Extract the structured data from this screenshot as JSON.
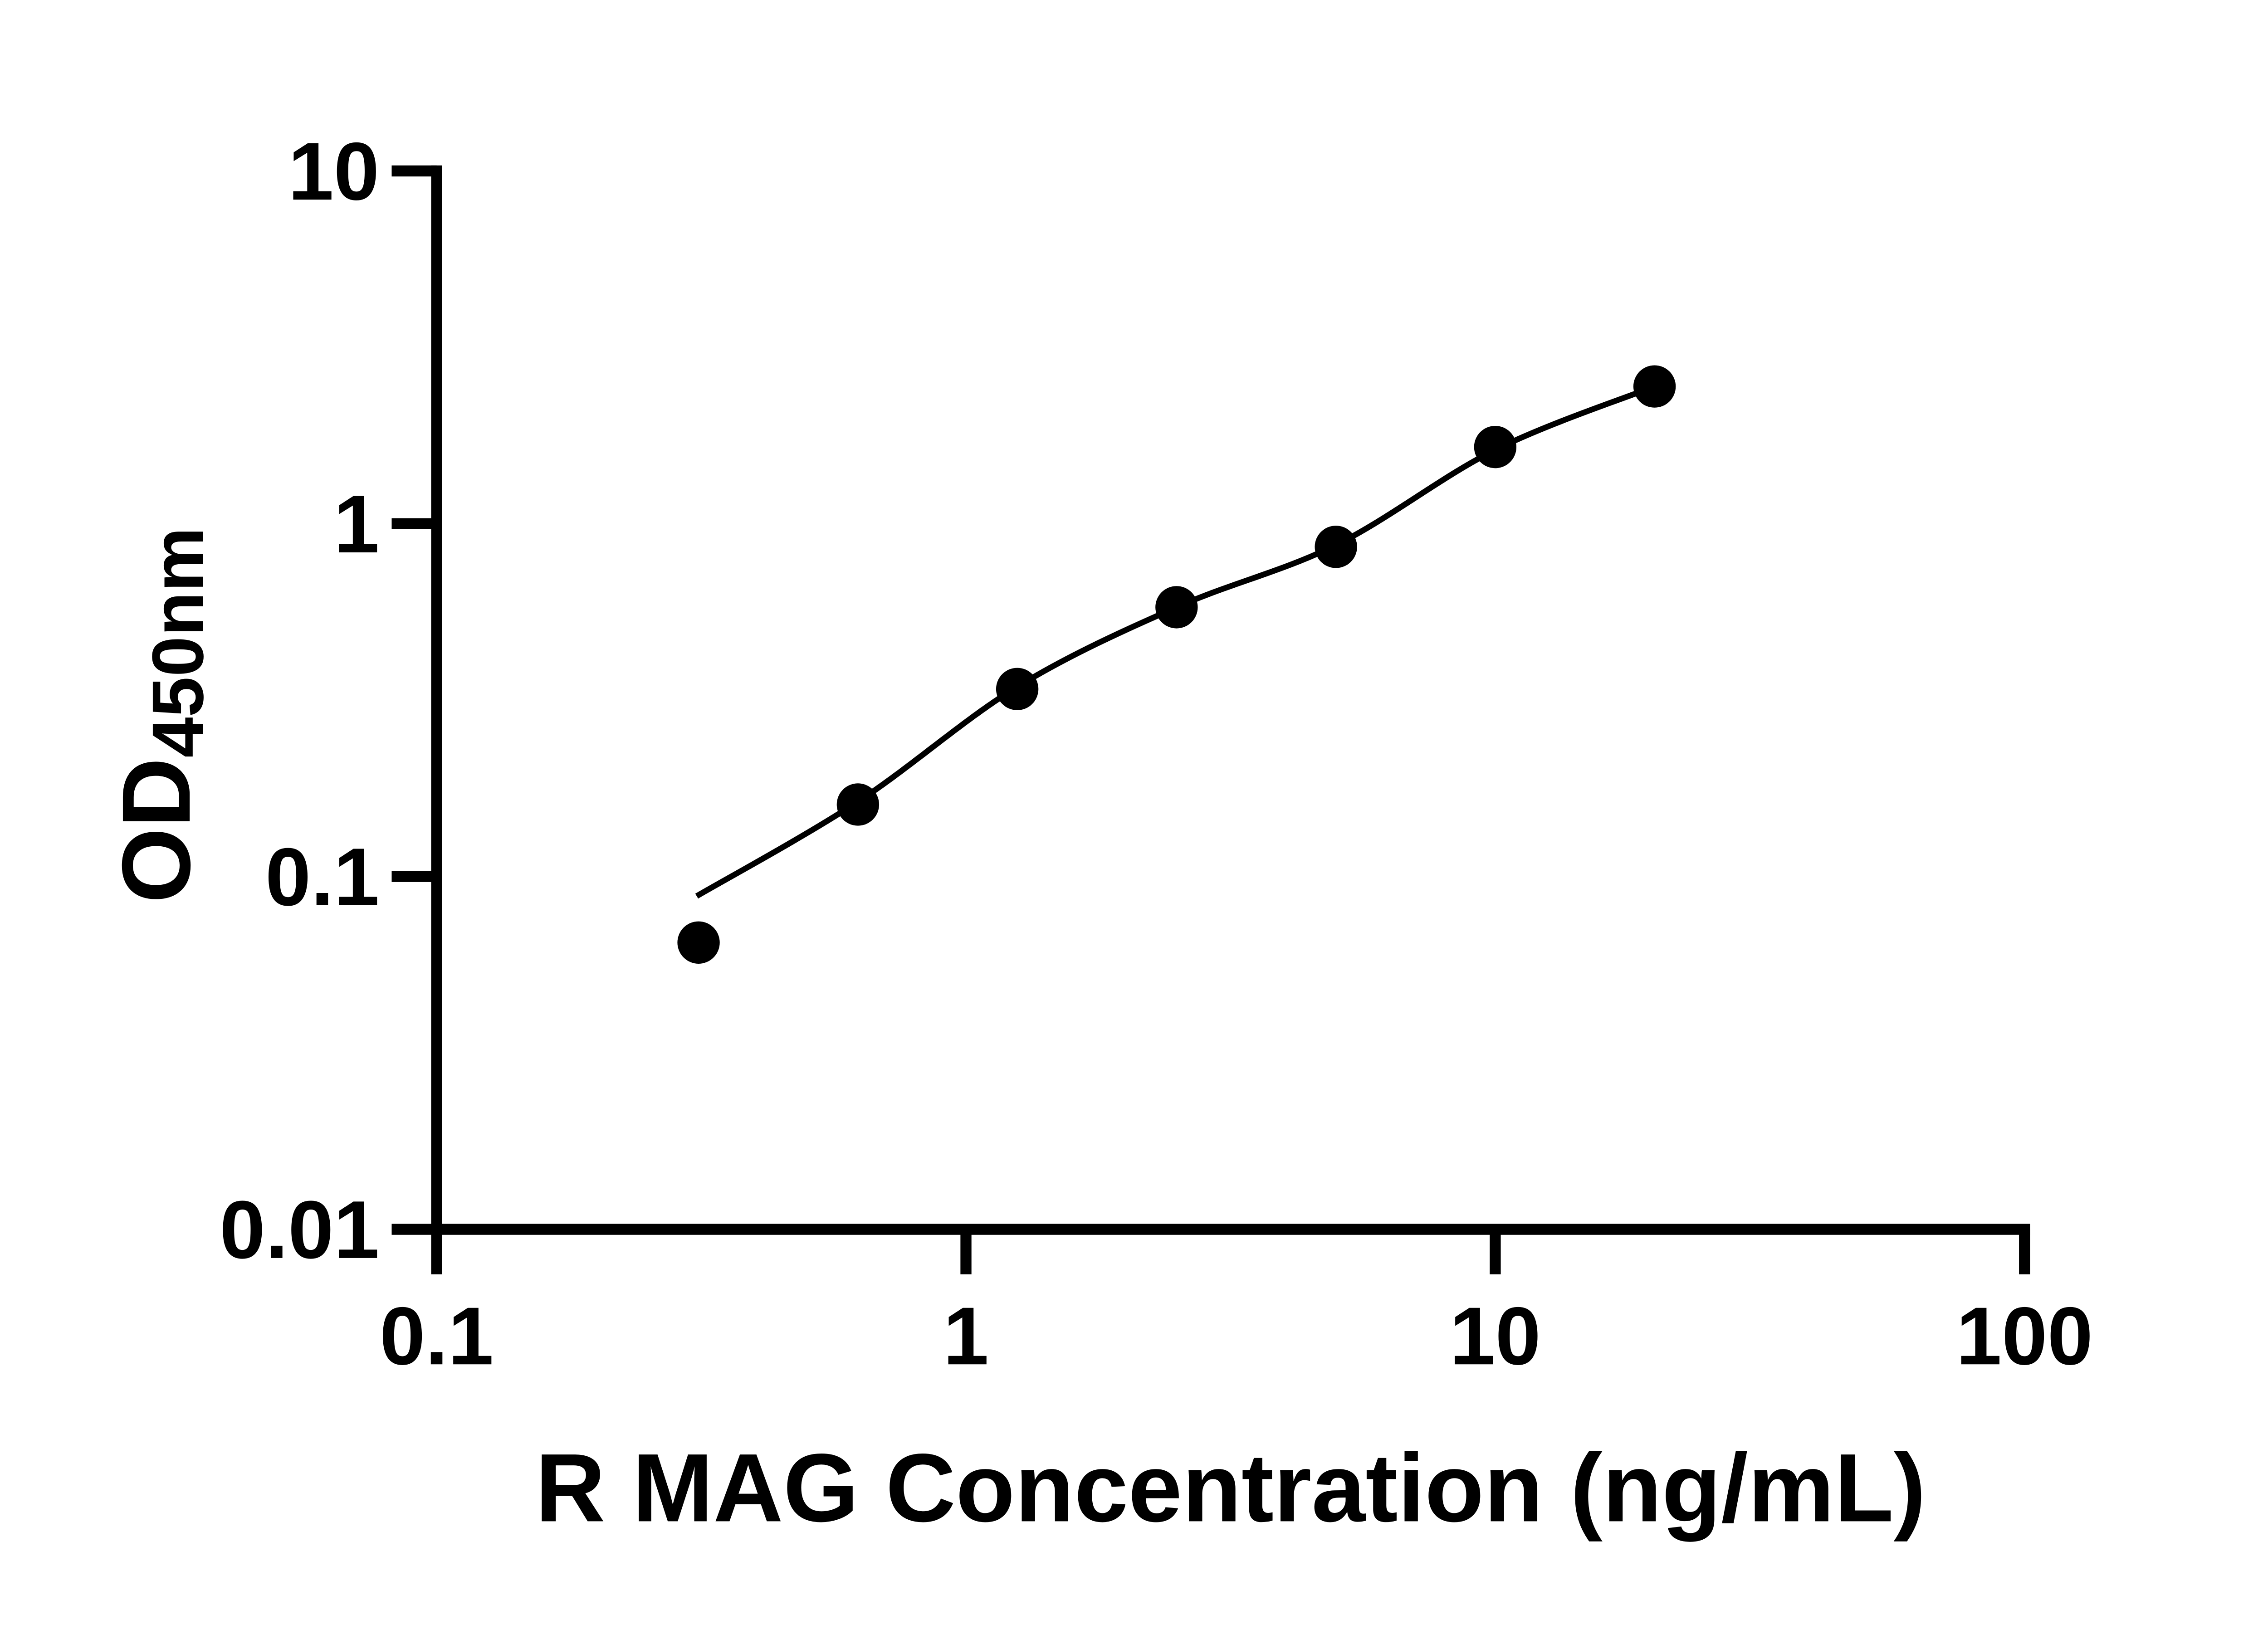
{
  "figure": {
    "background": "#ffffff",
    "ink_color": "#000000"
  },
  "chart_data": {
    "type": "scatter",
    "title": "",
    "xlabel": "R MAG Concentration (ng/mL)",
    "ylabel": "OD",
    "ylabel_subscript": "450nm",
    "x_scale": "log",
    "y_scale": "log",
    "xlim": [
      0.1,
      100
    ],
    "ylim": [
      0.01,
      10
    ],
    "grid": false,
    "legend_position": "none",
    "x_ticks": [
      {
        "value": 0.1,
        "label": "0.1"
      },
      {
        "value": 1,
        "label": "1"
      },
      {
        "value": 10,
        "label": "10"
      },
      {
        "value": 100,
        "label": "100"
      }
    ],
    "y_ticks": [
      {
        "value": 0.01,
        "label": "0.01"
      },
      {
        "value": 0.1,
        "label": "0.1"
      },
      {
        "value": 1,
        "label": "1"
      },
      {
        "value": 10,
        "label": "10"
      }
    ],
    "series": [
      {
        "name": "standard-points",
        "type": "scatter",
        "marker": "filled-circle",
        "color": "#000000",
        "points": [
          {
            "x": 0.3125,
            "y": 0.065
          },
          {
            "x": 0.625,
            "y": 0.16
          },
          {
            "x": 1.25,
            "y": 0.34
          },
          {
            "x": 2.5,
            "y": 0.58
          },
          {
            "x": 5,
            "y": 0.86
          },
          {
            "x": 10,
            "y": 1.65
          },
          {
            "x": 20,
            "y": 2.45
          }
        ]
      },
      {
        "name": "fit-curve",
        "type": "line",
        "color": "#000000",
        "points": [
          {
            "x": 0.31,
            "y": 0.088
          },
          {
            "x": 0.625,
            "y": 0.163
          },
          {
            "x": 1.25,
            "y": 0.345
          },
          {
            "x": 2.5,
            "y": 0.58
          },
          {
            "x": 5,
            "y": 0.87
          },
          {
            "x": 10,
            "y": 1.62
          },
          {
            "x": 20,
            "y": 2.45
          }
        ]
      }
    ]
  }
}
